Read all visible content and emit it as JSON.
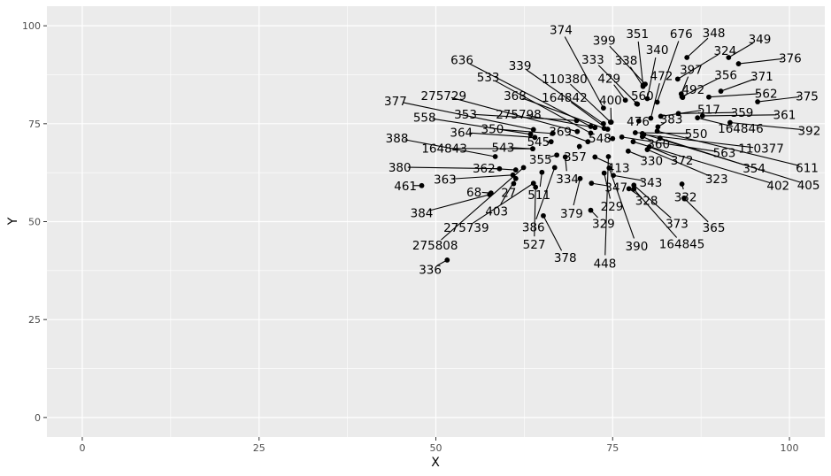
{
  "chart_data": {
    "type": "scatter",
    "title": "",
    "xlabel": "X",
    "ylabel": "Y",
    "xlim": [
      -5,
      105
    ],
    "ylim": [
      -5,
      105
    ],
    "x_ticks": [
      0,
      25,
      50,
      75,
      100
    ],
    "y_ticks": [
      0,
      25,
      50,
      75,
      100
    ],
    "x_tick_labels": [
      "0",
      "25",
      "50",
      "75",
      "100"
    ],
    "y_tick_labels": [
      "0",
      "25",
      "50",
      "75",
      "100"
    ],
    "grid": true,
    "legend": "none",
    "point_color": "#000000",
    "panel_color": "#ebebeb",
    "grid_color": "#ffffff",
    "points": [
      {
        "label": "374",
        "x": 73.7,
        "y": 79.0,
        "lx": 67.7,
        "ly": 99.0
      },
      {
        "label": "351",
        "x": 79.3,
        "y": 84.8,
        "lx": 78.5,
        "ly": 98.0
      },
      {
        "label": "676",
        "x": 81.3,
        "y": 80.5,
        "lx": 84.7,
        "ly": 98.0
      },
      {
        "label": "348",
        "x": 85.5,
        "y": 91.9,
        "lx": 89.3,
        "ly": 98.2
      },
      {
        "label": "399",
        "x": 79.6,
        "y": 85.1,
        "lx": 73.8,
        "ly": 96.3
      },
      {
        "label": "340",
        "x": 79.9,
        "y": 81.4,
        "lx": 81.3,
        "ly": 93.9
      },
      {
        "label": "349",
        "x": 91.4,
        "y": 91.9,
        "lx": 95.8,
        "ly": 96.6
      },
      {
        "label": "324",
        "x": 84.2,
        "y": 86.4,
        "lx": 90.9,
        "ly": 93.7
      },
      {
        "label": "376",
        "x": 92.8,
        "y": 90.3,
        "lx": 100.1,
        "ly": 91.8
      },
      {
        "label": "636",
        "x": 71.9,
        "y": 74.3,
        "lx": 53.7,
        "ly": 91.3
      },
      {
        "label": "339",
        "x": 73.7,
        "y": 75.0,
        "lx": 61.9,
        "ly": 89.9
      },
      {
        "label": "333",
        "x": 78.5,
        "y": 80.0,
        "lx": 72.2,
        "ly": 91.4
      },
      {
        "label": "338",
        "x": 79.3,
        "y": 84.5,
        "lx": 76.9,
        "ly": 91.2
      },
      {
        "label": "397",
        "x": 84.7,
        "y": 82.6,
        "lx": 86.1,
        "ly": 88.9
      },
      {
        "label": "533",
        "x": 71.9,
        "y": 72.6,
        "lx": 57.4,
        "ly": 86.9
      },
      {
        "label": "110380",
        "x": 74.7,
        "y": 75.4,
        "lx": 68.2,
        "ly": 86.5
      },
      {
        "label": "429",
        "x": 76.8,
        "y": 81.0,
        "lx": 74.5,
        "ly": 86.6
      },
      {
        "label": "472",
        "x": 80.4,
        "y": 76.4,
        "lx": 81.9,
        "ly": 87.3
      },
      {
        "label": "356",
        "x": 84.8,
        "y": 81.9,
        "lx": 91.0,
        "ly": 87.5
      },
      {
        "label": "371",
        "x": 90.3,
        "y": 83.3,
        "lx": 96.1,
        "ly": 87.1
      },
      {
        "label": "492",
        "x": 84.9,
        "y": 81.7,
        "lx": 86.4,
        "ly": 83.8
      },
      {
        "label": "275729",
        "x": 70.0,
        "y": 73.0,
        "lx": 51.1,
        "ly": 82.2
      },
      {
        "label": "368",
        "x": 73.8,
        "y": 73.8,
        "lx": 61.2,
        "ly": 82.2
      },
      {
        "label": "164842",
        "x": 74.3,
        "y": 73.6,
        "lx": 68.2,
        "ly": 81.7
      },
      {
        "label": "400",
        "x": 74.8,
        "y": 75.4,
        "lx": 74.7,
        "ly": 81.1
      },
      {
        "label": "560",
        "x": 78.4,
        "y": 80.1,
        "lx": 79.2,
        "ly": 82.2
      },
      {
        "label": "562",
        "x": 88.6,
        "y": 81.8,
        "lx": 96.7,
        "ly": 82.8
      },
      {
        "label": "375",
        "x": 95.5,
        "y": 80.6,
        "lx": 102.5,
        "ly": 82.1
      },
      {
        "label": "377",
        "x": 63.8,
        "y": 73.5,
        "lx": 44.3,
        "ly": 80.8
      },
      {
        "label": "517",
        "x": 81.8,
        "y": 76.9,
        "lx": 88.6,
        "ly": 78.7
      },
      {
        "label": "359",
        "x": 84.3,
        "y": 77.6,
        "lx": 93.3,
        "ly": 77.9
      },
      {
        "label": "353",
        "x": 69.9,
        "y": 75.8,
        "lx": 54.2,
        "ly": 77.5
      },
      {
        "label": "275798",
        "x": 72.5,
        "y": 74.0,
        "lx": 61.7,
        "ly": 77.5
      },
      {
        "label": "361",
        "x": 87.7,
        "y": 77.0,
        "lx": 99.3,
        "ly": 77.3
      },
      {
        "label": "558",
        "x": 63.4,
        "y": 72.3,
        "lx": 48.4,
        "ly": 76.6
      },
      {
        "label": "476",
        "x": 78.7,
        "y": 75.7,
        "lx": 78.6,
        "ly": 75.6
      },
      {
        "label": "383",
        "x": 81.4,
        "y": 74.2,
        "lx": 83.3,
        "ly": 76.2
      },
      {
        "label": "350",
        "x": 66.5,
        "y": 72.5,
        "lx": 58.0,
        "ly": 73.7
      },
      {
        "label": "164846",
        "x": 87.0,
        "y": 76.5,
        "lx": 93.1,
        "ly": 73.8
      },
      {
        "label": "392",
        "x": 91.6,
        "y": 75.3,
        "lx": 102.8,
        "ly": 73.3
      },
      {
        "label": "364",
        "x": 64.0,
        "y": 71.5,
        "lx": 53.6,
        "ly": 72.8
      },
      {
        "label": "369",
        "x": 71.5,
        "y": 70.4,
        "lx": 67.6,
        "ly": 73.0
      },
      {
        "label": "550",
        "x": 78.2,
        "y": 72.7,
        "lx": 86.8,
        "ly": 72.5
      },
      {
        "label": "388",
        "x": 58.4,
        "y": 66.6,
        "lx": 44.5,
        "ly": 71.3
      },
      {
        "label": "545",
        "x": 66.3,
        "y": 70.4,
        "lx": 64.5,
        "ly": 70.4
      },
      {
        "label": "548",
        "x": 75.0,
        "y": 71.2,
        "lx": 73.2,
        "ly": 71.3
      },
      {
        "label": "360",
        "x": 79.2,
        "y": 71.7,
        "lx": 81.5,
        "ly": 69.9
      },
      {
        "label": "110377",
        "x": 79.4,
        "y": 72.2,
        "lx": 96.0,
        "ly": 68.7
      },
      {
        "label": "543",
        "x": 63.7,
        "y": 68.6,
        "lx": 59.5,
        "ly": 69.0
      },
      {
        "label": "164843",
        "x": 63.7,
        "y": 68.6,
        "lx": 51.2,
        "ly": 68.7
      },
      {
        "label": "563",
        "x": 76.3,
        "y": 71.6,
        "lx": 90.8,
        "ly": 67.6
      },
      {
        "label": "357",
        "x": 70.3,
        "y": 69.2,
        "lx": 69.7,
        "ly": 66.6
      },
      {
        "label": "355",
        "x": 67.1,
        "y": 67.0,
        "lx": 64.8,
        "ly": 65.9
      },
      {
        "label": "330",
        "x": 77.2,
        "y": 68.0,
        "lx": 80.5,
        "ly": 65.6
      },
      {
        "label": "372",
        "x": 80.2,
        "y": 69.1,
        "lx": 84.8,
        "ly": 65.7
      },
      {
        "label": "611",
        "x": 81.3,
        "y": 73.1,
        "lx": 102.5,
        "ly": 63.8
      },
      {
        "label": "354",
        "x": 81.7,
        "y": 71.3,
        "lx": 95.0,
        "ly": 63.7
      },
      {
        "label": "380",
        "x": 59.0,
        "y": 63.5,
        "lx": 44.9,
        "ly": 63.9
      },
      {
        "label": "362",
        "x": 61.3,
        "y": 63.2,
        "lx": 56.8,
        "ly": 63.7
      },
      {
        "label": "413",
        "x": 72.5,
        "y": 66.5,
        "lx": 75.8,
        "ly": 63.8
      },
      {
        "label": "334",
        "x": 68.3,
        "y": 66.5,
        "lx": 68.6,
        "ly": 60.9
      },
      {
        "label": "363",
        "x": 60.9,
        "y": 61.9,
        "lx": 51.3,
        "ly": 60.8
      },
      {
        "label": "343",
        "x": 75.1,
        "y": 61.8,
        "lx": 80.4,
        "ly": 60.1
      },
      {
        "label": "323",
        "x": 79.9,
        "y": 68.4,
        "lx": 89.7,
        "ly": 60.9
      },
      {
        "label": "402",
        "x": 77.9,
        "y": 70.4,
        "lx": 98.4,
        "ly": 59.3
      },
      {
        "label": "405",
        "x": 79.2,
        "y": 72.5,
        "lx": 102.7,
        "ly": 59.4
      },
      {
        "label": "461",
        "x": 48.0,
        "y": 59.2,
        "lx": 45.7,
        "ly": 59.2
      },
      {
        "label": "347",
        "x": 72.0,
        "y": 59.8,
        "lx": 75.5,
        "ly": 58.8
      },
      {
        "label": "68",
        "x": 57.8,
        "y": 57.3,
        "lx": 55.4,
        "ly": 57.6
      },
      {
        "label": "27",
        "x": 61.0,
        "y": 59.7,
        "lx": 60.3,
        "ly": 57.5
      },
      {
        "label": "511",
        "x": 65.0,
        "y": 62.6,
        "lx": 64.6,
        "ly": 56.9
      },
      {
        "label": "328",
        "x": 77.3,
        "y": 58.4,
        "lx": 79.8,
        "ly": 55.4
      },
      {
        "label": "332",
        "x": 84.8,
        "y": 59.6,
        "lx": 85.3,
        "ly": 56.3
      },
      {
        "label": "229",
        "x": 73.8,
        "y": 62.4,
        "lx": 74.9,
        "ly": 53.9
      },
      {
        "label": "403",
        "x": 61.3,
        "y": 61.0,
        "lx": 58.6,
        "ly": 52.7
      },
      {
        "label": "384",
        "x": 57.6,
        "y": 56.9,
        "lx": 48.0,
        "ly": 52.3
      },
      {
        "label": "379",
        "x": 70.4,
        "y": 61.0,
        "lx": 69.2,
        "ly": 52.2
      },
      {
        "label": "373",
        "x": 78.0,
        "y": 59.3,
        "lx": 84.1,
        "ly": 49.6
      },
      {
        "label": "365",
        "x": 85.1,
        "y": 56.0,
        "lx": 89.3,
        "ly": 48.5
      },
      {
        "label": "275739",
        "x": 63.8,
        "y": 59.8,
        "lx": 54.3,
        "ly": 48.5
      },
      {
        "label": "386",
        "x": 66.8,
        "y": 63.8,
        "lx": 63.8,
        "ly": 48.7
      },
      {
        "label": "329",
        "x": 71.9,
        "y": 52.9,
        "lx": 73.7,
        "ly": 49.6
      },
      {
        "label": "164845",
        "x": 78.0,
        "y": 58.3,
        "lx": 84.8,
        "ly": 44.4
      },
      {
        "label": "390",
        "x": 74.5,
        "y": 63.7,
        "lx": 78.4,
        "ly": 43.8
      },
      {
        "label": "527",
        "x": 64.1,
        "y": 58.8,
        "lx": 63.9,
        "ly": 44.2
      },
      {
        "label": "275808",
        "x": 62.4,
        "y": 63.8,
        "lx": 49.9,
        "ly": 44.0
      },
      {
        "label": "378",
        "x": 65.2,
        "y": 51.5,
        "lx": 68.3,
        "ly": 40.8
      },
      {
        "label": "448",
        "x": 74.4,
        "y": 66.6,
        "lx": 73.9,
        "ly": 39.4
      },
      {
        "label": "336",
        "x": 51.6,
        "y": 40.2,
        "lx": 49.2,
        "ly": 37.8
      }
    ]
  }
}
